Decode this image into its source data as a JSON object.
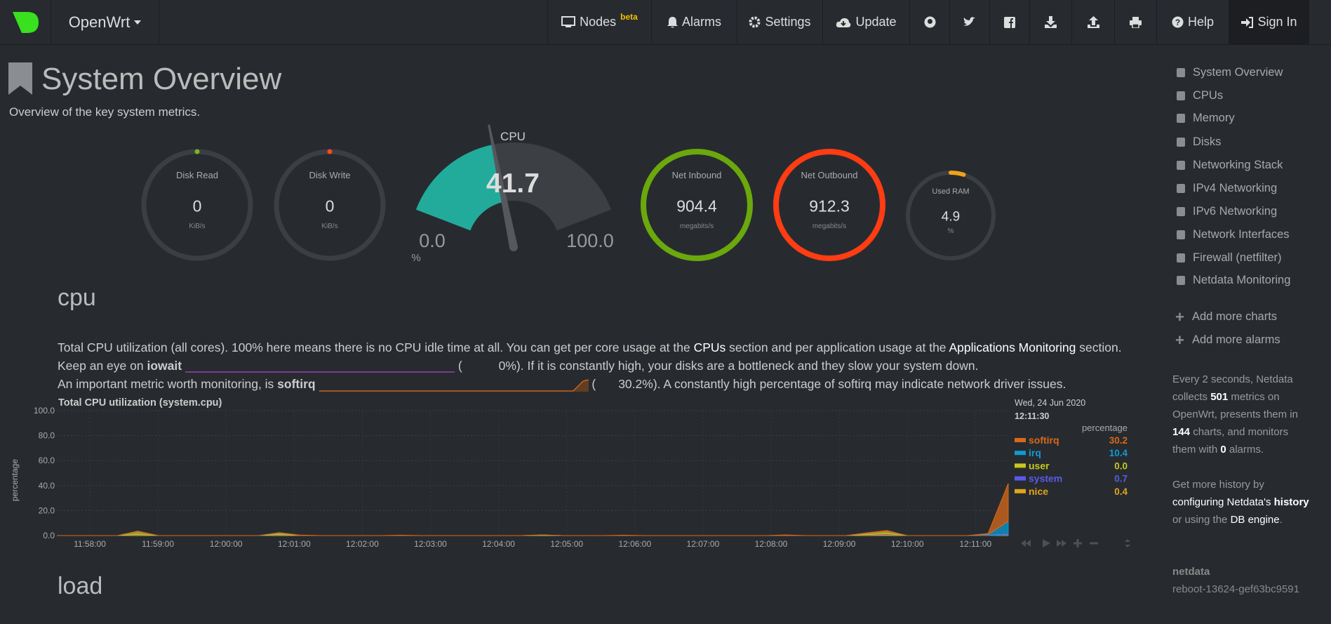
{
  "navbar": {
    "brand": "OpenWrt",
    "items": [
      {
        "label": "Nodes",
        "badge": "beta"
      },
      {
        "label": "Alarms"
      },
      {
        "label": "Settings"
      },
      {
        "label": "Update"
      },
      {
        "label": "Help"
      },
      {
        "label": "Sign In"
      }
    ]
  },
  "header": {
    "title": "System Overview",
    "subtitle": "Overview of the key system metrics."
  },
  "gauges": [
    {
      "label": "Disk Read",
      "value": 0,
      "unit": "KiB/s",
      "color": "#7bb521"
    },
    {
      "label": "Disk Write",
      "value": 0,
      "unit": "KiB/s",
      "color": "#ff4a1a"
    },
    {
      "label": "Net Inbound",
      "value": 904.4,
      "unit": "megabits/s",
      "color": "#6aa80c"
    },
    {
      "label": "Net Outbound",
      "value": 912.3,
      "unit": "megabits/s",
      "color": "#ff3c12"
    },
    {
      "label": "Used RAM",
      "value": 4.9,
      "unit": "%",
      "color": "#f0a21a"
    }
  ],
  "cpu_gauge": {
    "label": "CPU",
    "value": 41.7,
    "min": {
      "value": 0,
      "label": "0.0"
    },
    "max": {
      "value": 100,
      "label": "100.0"
    },
    "unit": "%",
    "color": "#22ab9b"
  },
  "sections": {
    "cpu": {
      "title": "cpu",
      "lines": [
        [
          "Total CPU utilization (all cores). 100% here means there is no CPU idle time at all. You can get per core usage at the ",
          "CPUs",
          " section and per application usage at the ",
          "Applications Monitoring",
          " section."
        ],
        [
          "Keep an eye on ",
          "iowait",
          "(",
          "0%). If it is constantly high, your disks are a bottleneck and they slow your system down."
        ],
        [
          "An important metric worth monitoring, is ",
          "softirq",
          "(",
          "30.2%). A constantly high percentage of softirq may indicate network driver issues."
        ]
      ]
    },
    "load": {
      "title": "load"
    }
  },
  "cpu_chart": {
    "type": "area",
    "title": "Total CPU utilization (system.cpu)",
    "ylabel": "percentage",
    "ylim": [
      0,
      100
    ],
    "yticks": [
      {
        "value": 0,
        "label": "0.0"
      },
      {
        "value": 20,
        "label": "20.0"
      },
      {
        "value": 40,
        "label": "40.0"
      },
      {
        "value": 60,
        "label": "60.0"
      },
      {
        "value": 80,
        "label": "80.0"
      },
      {
        "value": 100,
        "label": "100.0"
      }
    ],
    "xticks": [
      "11:58:00",
      "11:59:00",
      "12:00:00",
      "12:01:00",
      "12:02:00",
      "12:03:00",
      "12:04:00",
      "12:05:00",
      "12:06:00",
      "12:07:00",
      "12:08:00",
      "12:09:00",
      "12:10:00",
      "12:11:00"
    ],
    "legend": {
      "date": "Wed, 24 Jun 2020",
      "time": "12:11:30",
      "units": "percentage"
    },
    "series": [
      {
        "name": "softirq",
        "color": "#d8691a",
        "latest": "30.2",
        "values": [
          0,
          0,
          0,
          0,
          0.3,
          0,
          0,
          0,
          0,
          0,
          0,
          0,
          0.4,
          0,
          0,
          0,
          0,
          0.3,
          0,
          0,
          0,
          0,
          0,
          0,
          0,
          0,
          0,
          0,
          0.3,
          0,
          0,
          0,
          0,
          0,
          0,
          0,
          0.5,
          0,
          0,
          0,
          0.4,
          0.6,
          0,
          0,
          0,
          0,
          0.8,
          30.2
        ]
      },
      {
        "name": "irq",
        "color": "#0e9bd4",
        "latest": "10.4",
        "values": [
          0,
          0,
          0,
          0,
          0,
          0,
          0,
          0,
          0,
          0,
          0,
          0,
          0,
          0,
          0,
          0,
          0,
          0,
          0,
          0,
          0,
          0,
          0,
          0,
          0,
          0,
          0,
          0,
          0,
          0,
          0,
          0,
          0,
          0,
          0,
          0,
          0,
          0,
          0,
          0,
          0,
          0,
          0,
          0,
          0,
          0,
          0.5,
          10.4
        ]
      },
      {
        "name": "user",
        "color": "#c8c81e",
        "latest": "0.0",
        "values": [
          0,
          0,
          0,
          0,
          2.5,
          0,
          0,
          0,
          0,
          0,
          0,
          1.5,
          0,
          0,
          0,
          0,
          0,
          0,
          0,
          0,
          0,
          0,
          0,
          0,
          0.5,
          0,
          0,
          0,
          0,
          0,
          0,
          0,
          0,
          0,
          0,
          0,
          0,
          0,
          0,
          0,
          1,
          2,
          0,
          0,
          0,
          0,
          0,
          0
        ]
      },
      {
        "name": "system",
        "color": "#5a5ae6",
        "latest": "0.7",
        "values": [
          0,
          0,
          0,
          0,
          0.3,
          0,
          0,
          0,
          0,
          0,
          0,
          0.3,
          0,
          0,
          0,
          0,
          0,
          0,
          0,
          0,
          0,
          0,
          0,
          0,
          0,
          0,
          0,
          0,
          0,
          0,
          0,
          0,
          0,
          0,
          0,
          0,
          0,
          0,
          0,
          0,
          0.3,
          0.5,
          0,
          0,
          0,
          0,
          0.3,
          0.7
        ]
      },
      {
        "name": "nice",
        "color": "#e3a41a",
        "latest": "0.4",
        "values": [
          0,
          0,
          0,
          0,
          0.5,
          0,
          0,
          0,
          0,
          0,
          0,
          0.5,
          0,
          0,
          0,
          0,
          0,
          0,
          0,
          0,
          0,
          0,
          0,
          0,
          0,
          0,
          0,
          0,
          0,
          0,
          0,
          0,
          0,
          0,
          0,
          0,
          0,
          0,
          0,
          0,
          0.5,
          1,
          0,
          0,
          0,
          0,
          0,
          0.4
        ]
      }
    ]
  },
  "sidebar": {
    "menu": [
      "System Overview",
      "CPUs",
      "Memory",
      "Disks",
      "Networking Stack",
      "IPv4 Networking",
      "IPv6 Networking",
      "Network Interfaces",
      "Firewall (netfilter)",
      "Netdata Monitoring"
    ],
    "actions": [
      "Add more charts",
      "Add more alarms"
    ],
    "info": [
      {
        "text": "Every 2 seconds, Netdata collects "
      },
      {
        "text": "501",
        "strong": true
      },
      {
        "text": " metrics on OpenWrt, presents them in "
      },
      {
        "text": "144",
        "strong": true
      },
      {
        "text": " charts, and monitors them with "
      },
      {
        "text": "0",
        "strong": true
      },
      {
        "text": " alarms."
      }
    ],
    "history": [
      {
        "text": "Get more history by "
      },
      {
        "text": "configuring Netdata's ",
        "link": true
      },
      {
        "text": "history",
        "strong": true
      },
      {
        "text": " or using the "
      },
      {
        "text": "DB engine",
        "link": true
      },
      {
        "text": "."
      }
    ],
    "footer": {
      "name": "netdata",
      "version": "reboot-13624-gef63bc9591"
    }
  }
}
